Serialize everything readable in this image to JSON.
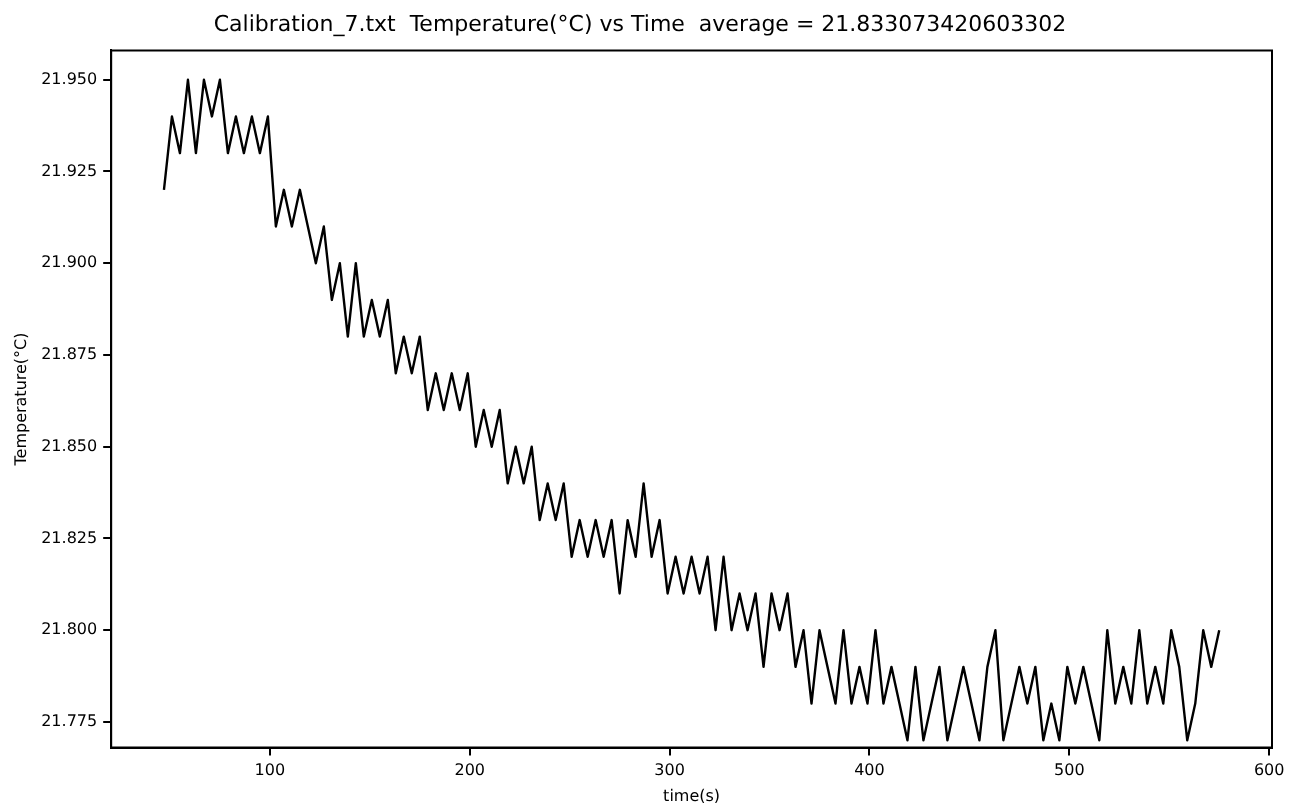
{
  "chart_data": {
    "type": "line",
    "title": "Calibration_7.txt  Temperature(°C) vs Time  average = 21.833073420603302",
    "xlabel": "time(s)",
    "ylabel": "Temperature(°C)",
    "x": [
      47,
      51,
      55,
      59,
      63,
      67,
      71,
      75,
      79,
      83,
      87,
      91,
      95,
      99,
      103,
      107,
      111,
      115,
      119,
      123,
      127,
      131,
      135,
      139,
      143,
      147,
      151,
      155,
      159,
      163,
      167,
      171,
      175,
      179,
      183,
      187,
      191,
      195,
      199,
      203,
      207,
      211,
      215,
      219,
      223,
      227,
      231,
      235,
      239,
      243,
      247,
      251,
      255,
      259,
      263,
      267,
      271,
      275,
      279,
      283,
      287,
      291,
      295,
      299,
      303,
      307,
      311,
      315,
      319,
      323,
      327,
      331,
      335,
      339,
      343,
      347,
      351,
      355,
      359,
      363,
      367,
      371,
      375,
      379,
      383,
      387,
      391,
      395,
      399,
      403,
      407,
      411,
      415,
      419,
      423,
      427,
      431,
      435,
      439,
      443,
      447,
      451,
      455,
      459,
      463,
      467,
      471,
      475,
      479,
      483,
      487,
      491,
      495,
      499,
      503,
      507,
      511,
      515,
      519,
      523,
      527,
      531,
      535,
      539,
      543,
      547,
      551,
      555,
      559,
      563,
      567,
      571,
      575
    ],
    "series": [
      {
        "color": "#000000",
        "values": [
          21.92,
          21.94,
          21.93,
          21.95,
          21.93,
          21.95,
          21.94,
          21.95,
          21.93,
          21.94,
          21.93,
          21.94,
          21.93,
          21.94,
          21.91,
          21.92,
          21.91,
          21.92,
          21.91,
          21.9,
          21.91,
          21.89,
          21.9,
          21.88,
          21.9,
          21.88,
          21.89,
          21.88,
          21.89,
          21.87,
          21.88,
          21.87,
          21.88,
          21.86,
          21.87,
          21.86,
          21.87,
          21.86,
          21.87,
          21.85,
          21.86,
          21.85,
          21.86,
          21.84,
          21.85,
          21.84,
          21.85,
          21.83,
          21.84,
          21.83,
          21.84,
          21.82,
          21.83,
          21.82,
          21.83,
          21.82,
          21.83,
          21.81,
          21.83,
          21.82,
          21.84,
          21.82,
          21.83,
          21.81,
          21.82,
          21.81,
          21.82,
          21.81,
          21.82,
          21.8,
          21.82,
          21.8,
          21.81,
          21.8,
          21.81,
          21.79,
          21.81,
          21.8,
          21.81,
          21.79,
          21.8,
          21.78,
          21.8,
          21.79,
          21.78,
          21.8,
          21.78,
          21.79,
          21.78,
          21.8,
          21.78,
          21.79,
          21.78,
          21.77,
          21.79,
          21.77,
          21.78,
          21.79,
          21.77,
          21.78,
          21.79,
          21.78,
          21.77,
          21.79,
          21.8,
          21.77,
          21.78,
          21.79,
          21.78,
          21.79,
          21.77,
          21.78,
          21.77,
          21.79,
          21.78,
          21.79,
          21.78,
          21.77,
          21.8,
          21.78,
          21.79,
          21.78,
          21.8,
          21.78,
          21.79,
          21.78,
          21.8,
          21.79,
          21.77,
          21.78,
          21.8,
          21.79,
          21.8
        ]
      }
    ],
    "xlim": [
      20.6,
      601.4
    ],
    "xticks": [
      100,
      200,
      300,
      400,
      500,
      600
    ],
    "ylim": [
      21.768,
      21.958
    ],
    "yticks": [
      {
        "value": 21.775,
        "label": "21.775"
      },
      {
        "value": 21.8,
        "label": "21.800"
      },
      {
        "value": 21.825,
        "label": "21.825"
      },
      {
        "value": 21.85,
        "label": "21.850"
      },
      {
        "value": 21.875,
        "label": "21.875"
      },
      {
        "value": 21.9,
        "label": "21.900"
      },
      {
        "value": 21.925,
        "label": "21.925"
      },
      {
        "value": 21.95,
        "label": "21.950"
      }
    ],
    "grid": false,
    "legend": false,
    "marker": "none",
    "line_style": "solid"
  }
}
